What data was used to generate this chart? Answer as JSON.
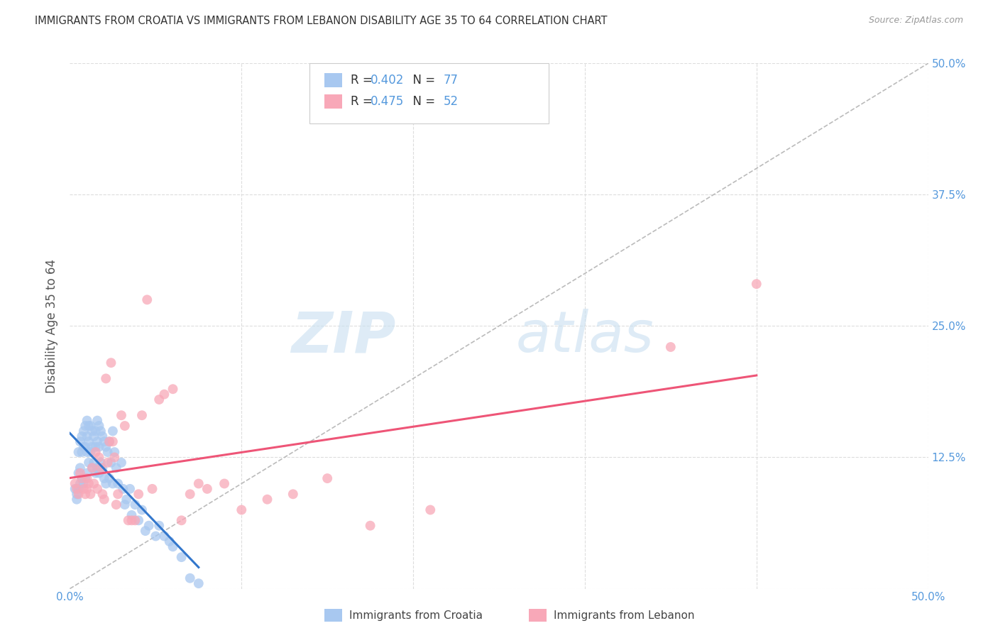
{
  "title": "IMMIGRANTS FROM CROATIA VS IMMIGRANTS FROM LEBANON DISABILITY AGE 35 TO 64 CORRELATION CHART",
  "source": "Source: ZipAtlas.com",
  "ylabel": "Disability Age 35 to 64",
  "xlim": [
    0.0,
    0.5
  ],
  "ylim": [
    0.0,
    0.5
  ],
  "xticks": [
    0.0,
    0.1,
    0.2,
    0.3,
    0.4,
    0.5
  ],
  "yticks": [
    0.0,
    0.125,
    0.25,
    0.375,
    0.5
  ],
  "xticklabels": [
    "0.0%",
    "",
    "",
    "",
    "",
    "50.0%"
  ],
  "yticklabels": [
    "",
    "12.5%",
    "25.0%",
    "37.5%",
    "50.0%"
  ],
  "croatia_color": "#a8c8f0",
  "lebanon_color": "#f8a8b8",
  "croatia_R": 0.402,
  "croatia_N": 77,
  "lebanon_R": 0.475,
  "lebanon_N": 52,
  "croatia_trend_color": "#3377cc",
  "lebanon_trend_color": "#ee5577",
  "dashed_line_color": "#bbbbbb",
  "background_color": "#ffffff",
  "grid_color": "#dddddd",
  "watermark_zip_color": "#c8dff0",
  "watermark_atlas_color": "#c8dff0",
  "tick_color": "#5599dd",
  "croatia_scatter_x": [
    0.003,
    0.004,
    0.004,
    0.005,
    0.005,
    0.005,
    0.006,
    0.006,
    0.006,
    0.007,
    0.007,
    0.007,
    0.008,
    0.008,
    0.008,
    0.009,
    0.009,
    0.009,
    0.01,
    0.01,
    0.01,
    0.01,
    0.011,
    0.011,
    0.011,
    0.012,
    0.012,
    0.013,
    0.013,
    0.013,
    0.014,
    0.014,
    0.015,
    0.015,
    0.015,
    0.016,
    0.016,
    0.016,
    0.017,
    0.017,
    0.017,
    0.018,
    0.018,
    0.019,
    0.019,
    0.02,
    0.02,
    0.021,
    0.021,
    0.022,
    0.023,
    0.023,
    0.024,
    0.025,
    0.025,
    0.026,
    0.027,
    0.028,
    0.03,
    0.031,
    0.032,
    0.033,
    0.035,
    0.036,
    0.038,
    0.04,
    0.042,
    0.044,
    0.046,
    0.05,
    0.052,
    0.055,
    0.058,
    0.06,
    0.065,
    0.07,
    0.075
  ],
  "croatia_scatter_y": [
    0.095,
    0.09,
    0.085,
    0.13,
    0.11,
    0.095,
    0.14,
    0.115,
    0.1,
    0.145,
    0.13,
    0.105,
    0.15,
    0.135,
    0.1,
    0.155,
    0.135,
    0.105,
    0.16,
    0.145,
    0.13,
    0.11,
    0.155,
    0.14,
    0.12,
    0.155,
    0.13,
    0.15,
    0.135,
    0.115,
    0.145,
    0.12,
    0.15,
    0.135,
    0.11,
    0.16,
    0.14,
    0.115,
    0.155,
    0.135,
    0.11,
    0.15,
    0.12,
    0.145,
    0.115,
    0.14,
    0.105,
    0.135,
    0.1,
    0.13,
    0.14,
    0.105,
    0.12,
    0.15,
    0.1,
    0.13,
    0.115,
    0.1,
    0.12,
    0.095,
    0.08,
    0.085,
    0.095,
    0.07,
    0.08,
    0.065,
    0.075,
    0.055,
    0.06,
    0.05,
    0.06,
    0.05,
    0.045,
    0.04,
    0.03,
    0.01,
    0.005
  ],
  "lebanon_scatter_x": [
    0.003,
    0.004,
    0.005,
    0.006,
    0.007,
    0.008,
    0.009,
    0.01,
    0.01,
    0.011,
    0.012,
    0.013,
    0.014,
    0.015,
    0.016,
    0.017,
    0.018,
    0.019,
    0.02,
    0.021,
    0.022,
    0.023,
    0.024,
    0.025,
    0.026,
    0.027,
    0.028,
    0.03,
    0.032,
    0.034,
    0.036,
    0.038,
    0.04,
    0.042,
    0.045,
    0.048,
    0.052,
    0.055,
    0.06,
    0.065,
    0.07,
    0.075,
    0.08,
    0.09,
    0.1,
    0.115,
    0.13,
    0.15,
    0.175,
    0.21,
    0.35,
    0.4
  ],
  "lebanon_scatter_y": [
    0.1,
    0.095,
    0.09,
    0.11,
    0.105,
    0.095,
    0.09,
    0.105,
    0.095,
    0.1,
    0.09,
    0.115,
    0.1,
    0.13,
    0.095,
    0.125,
    0.115,
    0.09,
    0.085,
    0.2,
    0.12,
    0.14,
    0.215,
    0.14,
    0.125,
    0.08,
    0.09,
    0.165,
    0.155,
    0.065,
    0.065,
    0.065,
    0.09,
    0.165,
    0.275,
    0.095,
    0.18,
    0.185,
    0.19,
    0.065,
    0.09,
    0.1,
    0.095,
    0.1,
    0.075,
    0.085,
    0.09,
    0.105,
    0.06,
    0.075,
    0.23,
    0.29
  ]
}
